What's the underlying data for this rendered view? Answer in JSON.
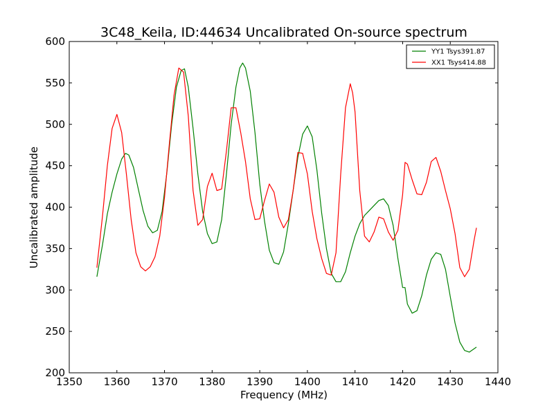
{
  "chart_data": {
    "type": "line",
    "title": "3C48_Keila, ID:44634 Uncalibrated On-source spectrum",
    "xlabel": "Frequency (MHz)",
    "ylabel": "Uncalibrated amplitude",
    "xlim": [
      1350,
      1440
    ],
    "ylim": [
      200,
      600
    ],
    "xticks": [
      1350,
      1360,
      1370,
      1380,
      1390,
      1400,
      1410,
      1420,
      1430,
      1440
    ],
    "yticks": [
      200,
      250,
      300,
      350,
      400,
      450,
      500,
      550,
      600
    ],
    "grid": false,
    "legend_position": "top-right",
    "series": [
      {
        "name": "YY1 Tsys391.87",
        "color": "#008000",
        "points": [
          [
            1355.8,
            316
          ],
          [
            1357,
            355
          ],
          [
            1358,
            392
          ],
          [
            1359,
            418
          ],
          [
            1360,
            440
          ],
          [
            1361,
            458
          ],
          [
            1361.8,
            465
          ],
          [
            1362.5,
            463
          ],
          [
            1363.5,
            448
          ],
          [
            1364.5,
            422
          ],
          [
            1365.5,
            396
          ],
          [
            1366.5,
            377
          ],
          [
            1367.5,
            369
          ],
          [
            1368.5,
            372
          ],
          [
            1369.5,
            395
          ],
          [
            1370.5,
            442
          ],
          [
            1371.5,
            500
          ],
          [
            1372.5,
            545
          ],
          [
            1373.5,
            565
          ],
          [
            1374.2,
            567
          ],
          [
            1375,
            545
          ],
          [
            1376,
            495
          ],
          [
            1377,
            440
          ],
          [
            1378,
            395
          ],
          [
            1379,
            368
          ],
          [
            1380,
            356
          ],
          [
            1381,
            358
          ],
          [
            1382,
            385
          ],
          [
            1383,
            440
          ],
          [
            1384,
            500
          ],
          [
            1385,
            545
          ],
          [
            1385.8,
            568
          ],
          [
            1386.4,
            574
          ],
          [
            1387,
            568
          ],
          [
            1388,
            540
          ],
          [
            1389,
            490
          ],
          [
            1390,
            428
          ],
          [
            1391,
            383
          ],
          [
            1392,
            348
          ],
          [
            1393,
            333
          ],
          [
            1394,
            331
          ],
          [
            1395,
            346
          ],
          [
            1396,
            380
          ],
          [
            1397,
            420
          ],
          [
            1398,
            460
          ],
          [
            1399,
            488
          ],
          [
            1400,
            498
          ],
          [
            1401,
            485
          ],
          [
            1402,
            445
          ],
          [
            1403,
            393
          ],
          [
            1404,
            350
          ],
          [
            1405,
            320
          ],
          [
            1406,
            310
          ],
          [
            1407,
            310
          ],
          [
            1408,
            322
          ],
          [
            1409,
            345
          ],
          [
            1410,
            365
          ],
          [
            1411,
            380
          ],
          [
            1412,
            390
          ],
          [
            1413,
            396
          ],
          [
            1414,
            402
          ],
          [
            1415,
            408
          ],
          [
            1416,
            410
          ],
          [
            1417,
            402
          ],
          [
            1418,
            378
          ],
          [
            1419,
            338
          ],
          [
            1420,
            303
          ],
          [
            1420.5,
            303
          ],
          [
            1421,
            283
          ],
          [
            1422,
            272
          ],
          [
            1423,
            275
          ],
          [
            1424,
            293
          ],
          [
            1425,
            318
          ],
          [
            1426,
            337
          ],
          [
            1427,
            345
          ],
          [
            1428,
            343
          ],
          [
            1429,
            325
          ],
          [
            1430,
            292
          ],
          [
            1431,
            260
          ],
          [
            1432,
            237
          ],
          [
            1433,
            227
          ],
          [
            1434,
            225
          ],
          [
            1435,
            229
          ],
          [
            1435.5,
            231
          ]
        ]
      },
      {
        "name": "XX1 Tsys414.88",
        "color": "#ff0000",
        "points": [
          [
            1355.8,
            327
          ],
          [
            1357,
            390
          ],
          [
            1358,
            450
          ],
          [
            1359,
            495
          ],
          [
            1360,
            512
          ],
          [
            1361,
            490
          ],
          [
            1362,
            440
          ],
          [
            1363,
            385
          ],
          [
            1364,
            345
          ],
          [
            1365,
            328
          ],
          [
            1366,
            323
          ],
          [
            1367,
            328
          ],
          [
            1368,
            340
          ],
          [
            1369,
            365
          ],
          [
            1370,
            412
          ],
          [
            1371,
            475
          ],
          [
            1372,
            535
          ],
          [
            1373,
            568
          ],
          [
            1374,
            563
          ],
          [
            1375,
            510
          ],
          [
            1376,
            420
          ],
          [
            1377,
            378
          ],
          [
            1378,
            385
          ],
          [
            1379,
            425
          ],
          [
            1380,
            441
          ],
          [
            1381,
            420
          ],
          [
            1382,
            422
          ],
          [
            1383,
            468
          ],
          [
            1384,
            520
          ],
          [
            1385,
            520
          ],
          [
            1386,
            490
          ],
          [
            1387,
            455
          ],
          [
            1388,
            410
          ],
          [
            1389,
            385
          ],
          [
            1390,
            386
          ],
          [
            1391,
            408
          ],
          [
            1392,
            428
          ],
          [
            1393,
            418
          ],
          [
            1394,
            388
          ],
          [
            1395,
            375
          ],
          [
            1396,
            385
          ],
          [
            1397,
            420
          ],
          [
            1398,
            466
          ],
          [
            1399,
            465
          ],
          [
            1400,
            440
          ],
          [
            1401,
            395
          ],
          [
            1402,
            362
          ],
          [
            1403,
            338
          ],
          [
            1404,
            320
          ],
          [
            1405,
            318
          ],
          [
            1406,
            345
          ],
          [
            1407,
            440
          ],
          [
            1408,
            520
          ],
          [
            1409,
            549
          ],
          [
            1409.5,
            538
          ],
          [
            1410,
            515
          ],
          [
            1411,
            420
          ],
          [
            1412,
            365
          ],
          [
            1413,
            358
          ],
          [
            1414,
            370
          ],
          [
            1415,
            388
          ],
          [
            1416,
            386
          ],
          [
            1417,
            370
          ],
          [
            1418,
            360
          ],
          [
            1419,
            372
          ],
          [
            1420,
            415
          ],
          [
            1420.5,
            454
          ],
          [
            1421,
            452
          ],
          [
            1422,
            433
          ],
          [
            1423,
            416
          ],
          [
            1424,
            415
          ],
          [
            1425,
            430
          ],
          [
            1426,
            455
          ],
          [
            1427,
            460
          ],
          [
            1428,
            443
          ],
          [
            1429,
            420
          ],
          [
            1430,
            398
          ],
          [
            1431,
            368
          ],
          [
            1432,
            327
          ],
          [
            1433,
            316
          ],
          [
            1434,
            325
          ],
          [
            1435,
            360
          ],
          [
            1435.5,
            375
          ]
        ]
      }
    ]
  }
}
